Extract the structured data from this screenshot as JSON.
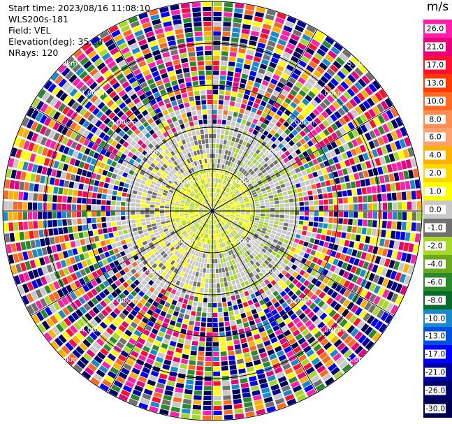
{
  "header": {
    "start_time": "Start time: 2023/08/16 11:08:10",
    "instrument": "WLS200s-181",
    "field": "Field: VEL",
    "elevation": "Elevation(deg): 35.30",
    "nrays": "NRays: 120"
  },
  "colorbar": {
    "unit": "m/s",
    "labels": [
      "26.0",
      "21.0",
      "17.0",
      "13.0",
      "10.0",
      "8.0",
      "6.0",
      "4.0",
      "2.0",
      "1.0",
      "0.0",
      "-1.0",
      "-2.0",
      "-4.0",
      "-6.0",
      "-8.0",
      "-10.0",
      "-13.0",
      "-17.0",
      "-21.0",
      "-26.0",
      "-30.0"
    ],
    "colors": [
      "#ff1fa8",
      "#e8007a",
      "#ff1030",
      "#ff3a00",
      "#ff6a20",
      "#ff8c50",
      "#ffa070",
      "#ffb000",
      "#ffd800",
      "#ffff00",
      "#c8c8c8",
      "#707070",
      "#a6d82a",
      "#6aa81e",
      "#2a8a2a",
      "#0a6a2a",
      "#1a8acc",
      "#0050e0",
      "#0000ff",
      "#0000a0",
      "#00006a",
      "#000050"
    ]
  },
  "chart_data": {
    "type": "ppi",
    "field": "VEL",
    "units": "m/s",
    "nrays": 120,
    "range_ring_labels": [
      "1.00km",
      "2.00km",
      "3.00km",
      "4.00km",
      "5.00km"
    ],
    "core_colors": [
      "#c8c8c8",
      "#707070",
      "#a6d82a",
      "#ffff00"
    ],
    "noise_colors": [
      "#ff1fa8",
      "#e8007a",
      "#ff1030",
      "#ff6a20",
      "#ffb000",
      "#ffff00",
      "#c8c8c8",
      "#707070",
      "#a6d82a",
      "#2a8a2a",
      "#1a8acc",
      "#0000ff",
      "#0000a0",
      "#00006a",
      "#000050"
    ]
  }
}
